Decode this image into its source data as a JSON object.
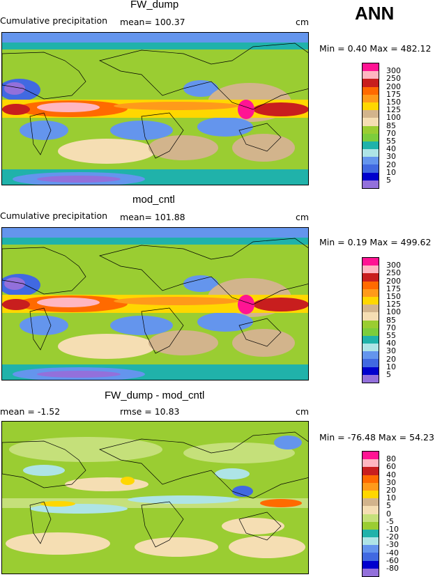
{
  "season": "ANN",
  "panels": [
    {
      "title": "FW_dump",
      "subtitle": "Cumulative precipitation",
      "stat": "mean=  100.37",
      "stat2": "",
      "units": "cm",
      "minmax": "Min =    0.40  Max =  482.12",
      "levels": [
        "300",
        "250",
        "200",
        "175",
        "150",
        "125",
        "100",
        "85",
        "70",
        "55",
        "40",
        "30",
        "20",
        "10",
        "5"
      ]
    },
    {
      "title": "mod_cntl",
      "subtitle": "Cumulative precipitation",
      "stat": "mean=  101.88",
      "stat2": "",
      "units": "cm",
      "minmax": "Min =    0.19  Max =  499.62",
      "levels": [
        "300",
        "250",
        "200",
        "175",
        "150",
        "125",
        "100",
        "85",
        "70",
        "55",
        "40",
        "30",
        "20",
        "10",
        "5"
      ]
    },
    {
      "title": "FW_dump - mod_cntl",
      "subtitle": "mean =   -1.52",
      "stat": "rmse =   10.83",
      "stat2": "",
      "units": "cm",
      "minmax": "Min = -76.48  Max =  54.23",
      "levels": [
        "80",
        "60",
        "40",
        "30",
        "20",
        "10",
        "5",
        "0",
        "-5",
        "-10",
        "-20",
        "-30",
        "-40",
        "-60",
        "-80"
      ]
    }
  ],
  "colors": {
    "precip_scale": [
      "#ff1493",
      "#ffb6c1",
      "#c81e1e",
      "#ff6a00",
      "#ff9a1a",
      "#ffd700",
      "#d2b48c",
      "#f5deb3",
      "#9acd32",
      "#7ccd3c",
      "#20b2aa",
      "#aee4e6",
      "#6495ed",
      "#4169e1",
      "#0000cd",
      "#9370db"
    ],
    "diff_scale": [
      "#ff1493",
      "#ffb6c1",
      "#c81e1e",
      "#ff6a00",
      "#ff9a1a",
      "#ffd700",
      "#d2b48c",
      "#f5deb3",
      "#c5e07a",
      "#9acd32",
      "#20b2aa",
      "#aee4e6",
      "#6495ed",
      "#4169e1",
      "#0000cd",
      "#9370db"
    ]
  }
}
